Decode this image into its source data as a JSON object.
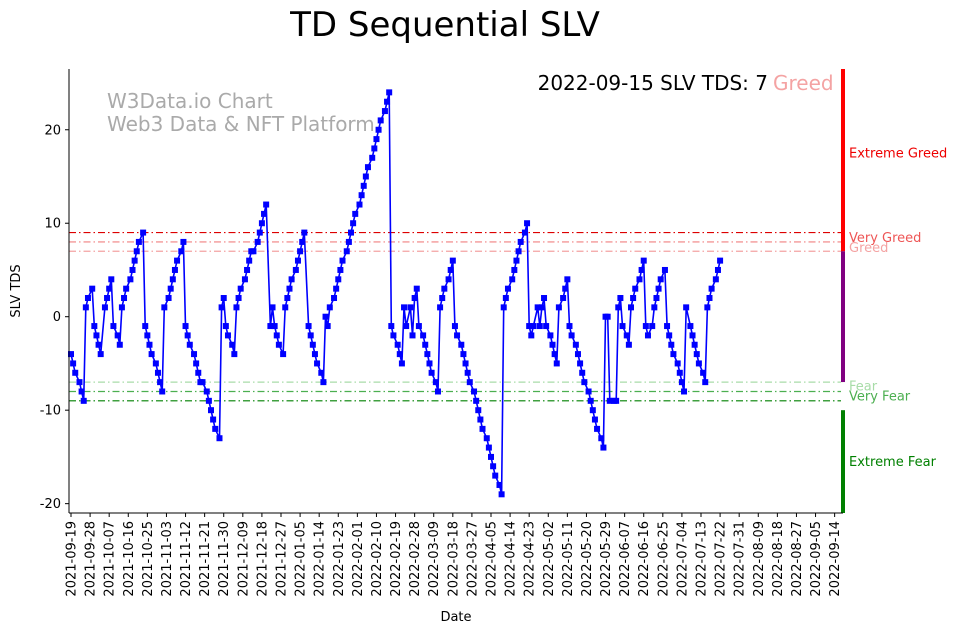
{
  "chart_data": {
    "type": "line",
    "title": "TD Sequential SLV",
    "xlabel": "Date",
    "ylabel": "SLV TDS",
    "ylim": [
      -21,
      26.5
    ],
    "yticks": [
      -20,
      -10,
      0,
      10,
      20
    ],
    "xlim": [
      0,
      363
    ],
    "start_date": "2021-09-19",
    "end_date": "2022-09-14",
    "xticks": [
      {
        "label": "2021-09-19",
        "day": 0
      },
      {
        "label": "2021-09-28",
        "day": 9
      },
      {
        "label": "2021-10-07",
        "day": 18
      },
      {
        "label": "2021-10-16",
        "day": 27
      },
      {
        "label": "2021-10-25",
        "day": 36
      },
      {
        "label": "2021-11-03",
        "day": 45
      },
      {
        "label": "2021-11-12",
        "day": 54
      },
      {
        "label": "2021-11-21",
        "day": 63
      },
      {
        "label": "2021-11-30",
        "day": 72
      },
      {
        "label": "2021-12-09",
        "day": 81
      },
      {
        "label": "2021-12-18",
        "day": 90
      },
      {
        "label": "2021-12-27",
        "day": 99
      },
      {
        "label": "2022-01-05",
        "day": 108
      },
      {
        "label": "2022-01-14",
        "day": 117
      },
      {
        "label": "2022-01-23",
        "day": 126
      },
      {
        "label": "2022-02-01",
        "day": 135
      },
      {
        "label": "2022-02-10",
        "day": 144
      },
      {
        "label": "2022-02-19",
        "day": 153
      },
      {
        "label": "2022-02-28",
        "day": 162
      },
      {
        "label": "2022-03-09",
        "day": 171
      },
      {
        "label": "2022-03-18",
        "day": 180
      },
      {
        "label": "2022-03-27",
        "day": 189
      },
      {
        "label": "2022-04-05",
        "day": 198
      },
      {
        "label": "2022-04-14",
        "day": 207
      },
      {
        "label": "2022-04-23",
        "day": 216
      },
      {
        "label": "2022-05-02",
        "day": 225
      },
      {
        "label": "2022-05-11",
        "day": 234
      },
      {
        "label": "2022-05-20",
        "day": 243
      },
      {
        "label": "2022-05-29",
        "day": 252
      },
      {
        "label": "2022-06-07",
        "day": 261
      },
      {
        "label": "2022-06-16",
        "day": 270
      },
      {
        "label": "2022-06-25",
        "day": 279
      },
      {
        "label": "2022-07-04",
        "day": 288
      },
      {
        "label": "2022-07-13",
        "day": 297
      },
      {
        "label": "2022-07-22",
        "day": 306
      },
      {
        "label": "2022-07-31",
        "day": 315
      },
      {
        "label": "2022-08-09",
        "day": 324
      },
      {
        "label": "2022-08-18",
        "day": 333
      },
      {
        "label": "2022-08-27",
        "day": 342
      },
      {
        "label": "2022-09-05",
        "day": 351
      },
      {
        "label": "2022-09-14",
        "day": 360
      }
    ],
    "series": [
      {
        "name": "SLV TDS",
        "color": "#0000ff",
        "points": [
          [
            0,
            -4
          ],
          [
            1,
            -5
          ],
          [
            2,
            -6
          ],
          [
            4,
            -7
          ],
          [
            5,
            -8
          ],
          [
            6,
            -9
          ],
          [
            7,
            1
          ],
          [
            8,
            2
          ],
          [
            10,
            3
          ],
          [
            11,
            -1
          ],
          [
            12,
            -2
          ],
          [
            13,
            -3
          ],
          [
            14,
            -4
          ],
          [
            16,
            1
          ],
          [
            17,
            2
          ],
          [
            18,
            3
          ],
          [
            19,
            4
          ],
          [
            20,
            -1
          ],
          [
            22,
            -2
          ],
          [
            23,
            -3
          ],
          [
            24,
            1
          ],
          [
            25,
            2
          ],
          [
            26,
            3
          ],
          [
            28,
            4
          ],
          [
            29,
            5
          ],
          [
            30,
            6
          ],
          [
            31,
            7
          ],
          [
            32,
            8
          ],
          [
            34,
            9
          ],
          [
            35,
            -1
          ],
          [
            36,
            -2
          ],
          [
            37,
            -3
          ],
          [
            38,
            -4
          ],
          [
            40,
            -5
          ],
          [
            41,
            -6
          ],
          [
            42,
            -7
          ],
          [
            43,
            -8
          ],
          [
            44,
            1
          ],
          [
            46,
            2
          ],
          [
            47,
            3
          ],
          [
            48,
            4
          ],
          [
            49,
            5
          ],
          [
            50,
            6
          ],
          [
            52,
            7
          ],
          [
            53,
            8
          ],
          [
            54,
            -1
          ],
          [
            55,
            -2
          ],
          [
            56,
            -3
          ],
          [
            58,
            -4
          ],
          [
            59,
            -5
          ],
          [
            60,
            -6
          ],
          [
            61,
            -7
          ],
          [
            62,
            -7
          ],
          [
            64,
            -8
          ],
          [
            65,
            -9
          ],
          [
            66,
            -10
          ],
          [
            67,
            -11
          ],
          [
            68,
            -12
          ],
          [
            70,
            -13
          ],
          [
            71,
            1
          ],
          [
            72,
            2
          ],
          [
            73,
            -1
          ],
          [
            74,
            -2
          ],
          [
            76,
            -3
          ],
          [
            77,
            -4
          ],
          [
            78,
            1
          ],
          [
            79,
            2
          ],
          [
            80,
            3
          ],
          [
            82,
            4
          ],
          [
            83,
            5
          ],
          [
            84,
            6
          ],
          [
            85,
            7
          ],
          [
            86,
            7
          ],
          [
            88,
            8
          ],
          [
            89,
            9
          ],
          [
            90,
            10
          ],
          [
            91,
            11
          ],
          [
            92,
            12
          ],
          [
            94,
            -1
          ],
          [
            95,
            1
          ],
          [
            96,
            -1
          ],
          [
            97,
            -2
          ],
          [
            98,
            -3
          ],
          [
            100,
            -4
          ],
          [
            101,
            1
          ],
          [
            102,
            2
          ],
          [
            103,
            3
          ],
          [
            104,
            4
          ],
          [
            106,
            5
          ],
          [
            107,
            6
          ],
          [
            108,
            7
          ],
          [
            109,
            8
          ],
          [
            110,
            9
          ],
          [
            112,
            -1
          ],
          [
            113,
            -2
          ],
          [
            114,
            -3
          ],
          [
            115,
            -4
          ],
          [
            116,
            -5
          ],
          [
            118,
            -6
          ],
          [
            119,
            -7
          ],
          [
            120,
            0
          ],
          [
            121,
            -1
          ],
          [
            122,
            1
          ],
          [
            124,
            2
          ],
          [
            125,
            3
          ],
          [
            126,
            4
          ],
          [
            127,
            5
          ],
          [
            128,
            6
          ],
          [
            130,
            7
          ],
          [
            131,
            8
          ],
          [
            132,
            9
          ],
          [
            133,
            10
          ],
          [
            134,
            11
          ],
          [
            136,
            12
          ],
          [
            137,
            13
          ],
          [
            138,
            14
          ],
          [
            139,
            15
          ],
          [
            140,
            16
          ],
          [
            142,
            17
          ],
          [
            143,
            18
          ],
          [
            144,
            19
          ],
          [
            145,
            20
          ],
          [
            146,
            21
          ],
          [
            148,
            22
          ],
          [
            149,
            23
          ],
          [
            150,
            24
          ],
          [
            151,
            -1
          ],
          [
            152,
            -2
          ],
          [
            154,
            -3
          ],
          [
            155,
            -4
          ],
          [
            156,
            -5
          ],
          [
            157,
            1
          ],
          [
            158,
            -1
          ],
          [
            160,
            1
          ],
          [
            161,
            -2
          ],
          [
            162,
            2
          ],
          [
            163,
            3
          ],
          [
            164,
            -1
          ],
          [
            166,
            -2
          ],
          [
            167,
            -3
          ],
          [
            168,
            -4
          ],
          [
            169,
            -5
          ],
          [
            170,
            -6
          ],
          [
            172,
            -7
          ],
          [
            173,
            -8
          ],
          [
            174,
            1
          ],
          [
            175,
            2
          ],
          [
            176,
            3
          ],
          [
            178,
            4
          ],
          [
            179,
            5
          ],
          [
            180,
            6
          ],
          [
            181,
            -1
          ],
          [
            182,
            -2
          ],
          [
            184,
            -3
          ],
          [
            185,
            -4
          ],
          [
            186,
            -5
          ],
          [
            187,
            -6
          ],
          [
            188,
            -7
          ],
          [
            190,
            -8
          ],
          [
            191,
            -9
          ],
          [
            192,
            -10
          ],
          [
            193,
            -11
          ],
          [
            194,
            -12
          ],
          [
            196,
            -13
          ],
          [
            197,
            -14
          ],
          [
            198,
            -15
          ],
          [
            199,
            -16
          ],
          [
            200,
            -17
          ],
          [
            202,
            -18
          ],
          [
            203,
            -19
          ],
          [
            204,
            1
          ],
          [
            205,
            2
          ],
          [
            206,
            3
          ],
          [
            208,
            4
          ],
          [
            209,
            5
          ],
          [
            210,
            6
          ],
          [
            211,
            7
          ],
          [
            212,
            8
          ],
          [
            214,
            9
          ],
          [
            215,
            10
          ],
          [
            216,
            -1
          ],
          [
            217,
            -2
          ],
          [
            218,
            -1
          ],
          [
            220,
            1
          ],
          [
            221,
            -1
          ],
          [
            222,
            1
          ],
          [
            223,
            2
          ],
          [
            224,
            -1
          ],
          [
            226,
            -2
          ],
          [
            227,
            -3
          ],
          [
            228,
            -4
          ],
          [
            229,
            -5
          ],
          [
            230,
            1
          ],
          [
            232,
            2
          ],
          [
            233,
            3
          ],
          [
            234,
            4
          ],
          [
            235,
            -1
          ],
          [
            236,
            -2
          ],
          [
            238,
            -3
          ],
          [
            239,
            -4
          ],
          [
            240,
            -5
          ],
          [
            241,
            -6
          ],
          [
            242,
            -7
          ],
          [
            244,
            -8
          ],
          [
            245,
            -9
          ],
          [
            246,
            -10
          ],
          [
            247,
            -11
          ],
          [
            248,
            -12
          ],
          [
            250,
            -13
          ],
          [
            251,
            -14
          ],
          [
            252,
            0
          ],
          [
            253,
            0
          ],
          [
            254,
            -9
          ],
          [
            256,
            -9
          ],
          [
            257,
            -9
          ],
          [
            258,
            1
          ],
          [
            259,
            2
          ],
          [
            260,
            -1
          ],
          [
            262,
            -2
          ],
          [
            263,
            -3
          ],
          [
            264,
            1
          ],
          [
            265,
            2
          ],
          [
            266,
            3
          ],
          [
            268,
            4
          ],
          [
            269,
            5
          ],
          [
            270,
            6
          ],
          [
            271,
            -1
          ],
          [
            272,
            -2
          ],
          [
            274,
            -1
          ],
          [
            275,
            1
          ],
          [
            276,
            2
          ],
          [
            277,
            3
          ],
          [
            278,
            4
          ],
          [
            280,
            5
          ],
          [
            281,
            -1
          ],
          [
            282,
            -2
          ],
          [
            283,
            -3
          ],
          [
            284,
            -4
          ],
          [
            286,
            -5
          ],
          [
            287,
            -6
          ],
          [
            288,
            -7
          ],
          [
            289,
            -8
          ],
          [
            290,
            1
          ],
          [
            292,
            -1
          ],
          [
            293,
            -2
          ],
          [
            294,
            -3
          ],
          [
            295,
            -4
          ],
          [
            296,
            -5
          ],
          [
            298,
            -6
          ],
          [
            299,
            -7
          ],
          [
            300,
            1
          ],
          [
            301,
            2
          ],
          [
            302,
            3
          ],
          [
            304,
            4
          ],
          [
            305,
            5
          ],
          [
            306,
            6
          ]
        ]
      }
    ],
    "reference_lines": [
      {
        "y": 9,
        "label": "Very Greed",
        "color": "#dd0000"
      },
      {
        "y": 8,
        "label": "",
        "color": "#f08080"
      },
      {
        "y": 7,
        "label": "Greed",
        "color": "#f4a3a3"
      },
      {
        "y": -7,
        "label": "Fear",
        "color": "#a8dca8"
      },
      {
        "y": -8,
        "label": "Very Fear",
        "color": "#4caf50"
      },
      {
        "y": -9,
        "label": "",
        "color": "#008000"
      }
    ],
    "zone_labels": [
      {
        "label": "Extreme Greed",
        "y": 17.5,
        "color": "#ee0000"
      },
      {
        "label": "Very Greed",
        "y": 8.5,
        "color": "#ee5555"
      },
      {
        "label": "Greed",
        "y": 7.4,
        "color": "#f4a3a3"
      },
      {
        "label": "Fear",
        "y": -7.4,
        "color": "#a8dca8"
      },
      {
        "label": "Very Fear",
        "y": -8.5,
        "color": "#4caf50"
      },
      {
        "label": "Extreme Fear",
        "y": -15.5,
        "color": "#008000"
      }
    ],
    "side_bar": [
      {
        "from": 26.5,
        "to": 7,
        "color": "#ff0000"
      },
      {
        "from": 7,
        "to": -7,
        "color": "#800080"
      },
      {
        "from": -7,
        "to": -10,
        "color": "#ffffff"
      },
      {
        "from": -10,
        "to": -21,
        "color": "#008000"
      }
    ],
    "watermark": [
      "W3Data.io Chart",
      "Web3 Data & NFT Platform"
    ],
    "status_prefix": "2022-09-15 SLV TDS: 7",
    "status_sentiment": "Greed",
    "status_sentiment_color": "#f4a3a3"
  }
}
